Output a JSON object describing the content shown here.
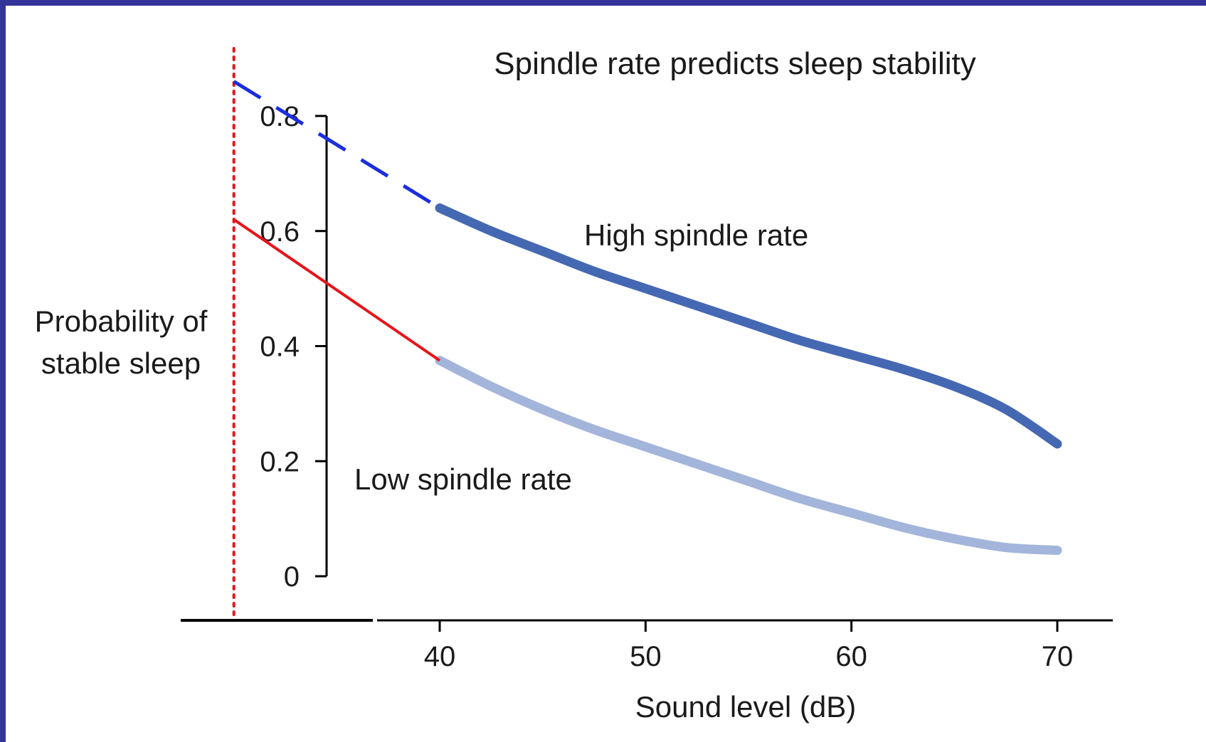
{
  "chart_data": {
    "type": "line",
    "title": "Spindle rate predicts sleep stability",
    "xlabel": "Sound level (dB)",
    "ylabel": [
      "Probability of",
      "stable sleep"
    ],
    "xlim": [
      40,
      70
    ],
    "ylim": [
      0,
      0.8
    ],
    "x_ticks": [
      40,
      50,
      60,
      70
    ],
    "y_ticks": [
      0,
      0.2,
      0.4,
      0.6,
      0.8
    ],
    "y_tick_labels": [
      "0",
      "0.2",
      "0.4",
      "0.6",
      "0.8"
    ],
    "grid": false,
    "series": [
      {
        "name": "High spindle rate",
        "color": "#4568b3",
        "x": [
          40,
          42.5,
          45,
          47.5,
          50,
          52.5,
          55,
          57.5,
          60,
          62.5,
          65,
          67.5,
          70
        ],
        "y": [
          0.64,
          0.6,
          0.565,
          0.53,
          0.5,
          0.47,
          0.44,
          0.41,
          0.385,
          0.36,
          0.33,
          0.29,
          0.23
        ]
      },
      {
        "name": "Low spindle rate",
        "color": "#a3b5da",
        "x": [
          40,
          42.5,
          45,
          47.5,
          50,
          52.5,
          55,
          57.5,
          60,
          62.5,
          65,
          67.5,
          70
        ],
        "y": [
          0.375,
          0.33,
          0.29,
          0.255,
          0.225,
          0.195,
          0.165,
          0.135,
          0.11,
          0.085,
          0.065,
          0.05,
          0.045
        ]
      }
    ],
    "annotations": {
      "high_extrapolation": {
        "color": "#1a2ee0",
        "style": "dashed",
        "from": [
          30,
          0.86
        ],
        "to": [
          40,
          0.64
        ]
      },
      "low_extrapolation": {
        "color": "#e8141a",
        "style": "solid",
        "from": [
          30,
          0.62
        ],
        "to": [
          40,
          0.375
        ]
      },
      "zero_marker": {
        "color": "#e8141a",
        "style": "dotted",
        "x": 30
      }
    }
  }
}
